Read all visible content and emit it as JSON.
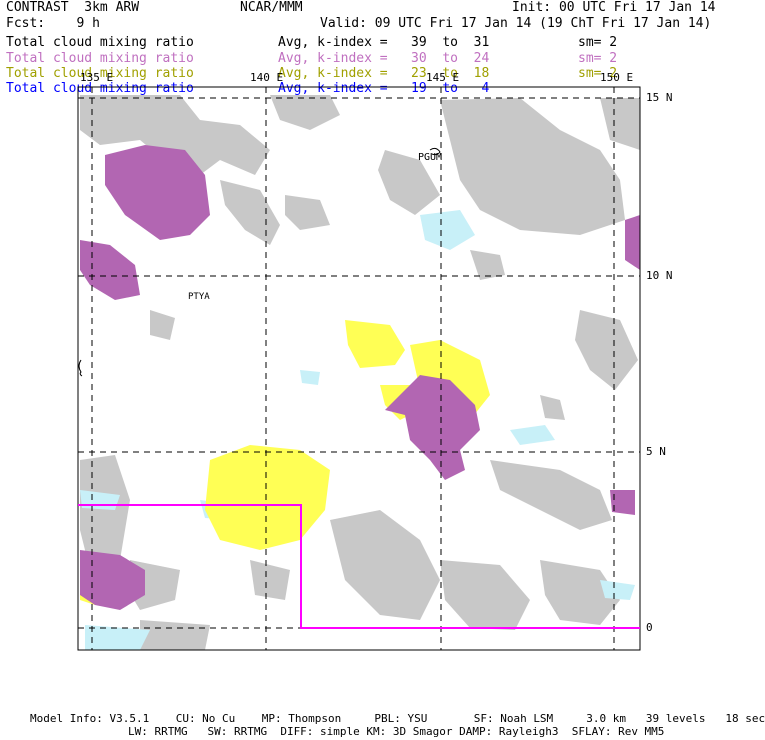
{
  "header": {
    "model": "CONTRAST  3km ARW",
    "org": "NCAR/MMM",
    "init": "Init: 00 UTC Fri 17 Jan 14",
    "fcst": "Fcst:    9 h",
    "valid": "Valid: 09 UTC Fri 17 Jan 14 (19 ChT Fri 17 Jan 14)"
  },
  "legend": [
    {
      "field": "Total cloud mixing ratio",
      "stat": "Avg, k-index =   39  to  31",
      "sm": "sm= 2",
      "color": "#000000"
    },
    {
      "field": "Total cloud mixing ratio",
      "stat": "Avg, k-index =   30  to  24",
      "sm": "sm= 2",
      "color": "#c070c0"
    },
    {
      "field": "Total cloud mixing ratio",
      "stat": "Avg, k-index =   23  to  18",
      "sm": "sm= 2",
      "color": "#a0a000"
    },
    {
      "field": "Total cloud mixing ratio",
      "stat": "Avg, k-index =   19  to   4",
      "sm": "",
      "color": "#0000ff"
    }
  ],
  "axes": {
    "lon_labels": [
      "135 E",
      "140 E",
      "145 E",
      "150 E"
    ],
    "lat_labels": [
      "15 N",
      "10 N",
      "5 N",
      "0"
    ]
  },
  "places": {
    "pgum": "PGUM",
    "ptya": "PTYA"
  },
  "footer": {
    "line1": "Model Info: V3.5.1    CU: No Cu    MP: Thompson     PBL: YSU       SF: Noah LSM     3.0 km   39 levels   18 sec",
    "line2": "LW: RRTMG   SW: RRTMG  DIFF: simple KM: 3D Smagor DAMP: Rayleigh3  SFLAY: Rev MM5"
  },
  "colors": {
    "low_cloud": "#c8c8c8",
    "mid_cloud": "#b266b2",
    "high_yellow": "#ffff55",
    "thin_cyan": "#c8f0f8",
    "domain_box": "#ff00ff"
  }
}
